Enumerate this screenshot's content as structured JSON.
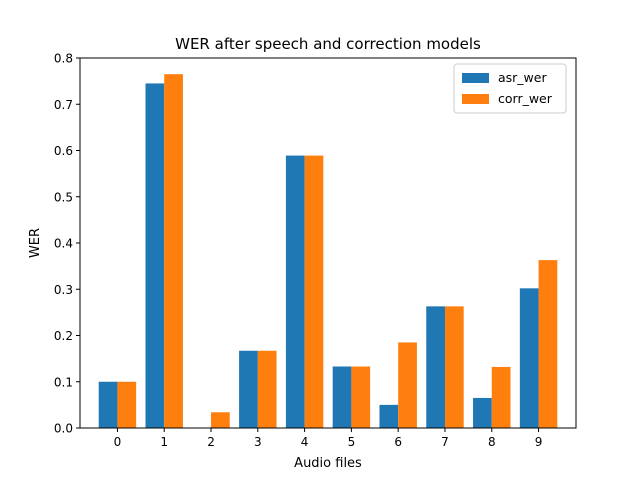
{
  "chart_data": {
    "type": "bar",
    "title": "WER after speech and correction models",
    "xlabel": "Audio files",
    "ylabel": "WER",
    "categories": [
      "0",
      "1",
      "2",
      "3",
      "4",
      "5",
      "6",
      "7",
      "8",
      "9"
    ],
    "ylim": [
      0,
      0.8
    ],
    "yticks": [
      "0.0",
      "0.1",
      "0.2",
      "0.3",
      "0.4",
      "0.5",
      "0.6",
      "0.7",
      "0.8"
    ],
    "grid": false,
    "legend_position": "top-right",
    "series": [
      {
        "name": "asr_wer",
        "color": "#1f77b4",
        "values": [
          0.1,
          0.745,
          0.0,
          0.167,
          0.589,
          0.133,
          0.05,
          0.263,
          0.065,
          0.302
        ]
      },
      {
        "name": "corr_wer",
        "color": "#ff7f0e",
        "values": [
          0.1,
          0.765,
          0.034,
          0.167,
          0.589,
          0.133,
          0.185,
          0.263,
          0.132,
          0.363
        ]
      }
    ]
  }
}
